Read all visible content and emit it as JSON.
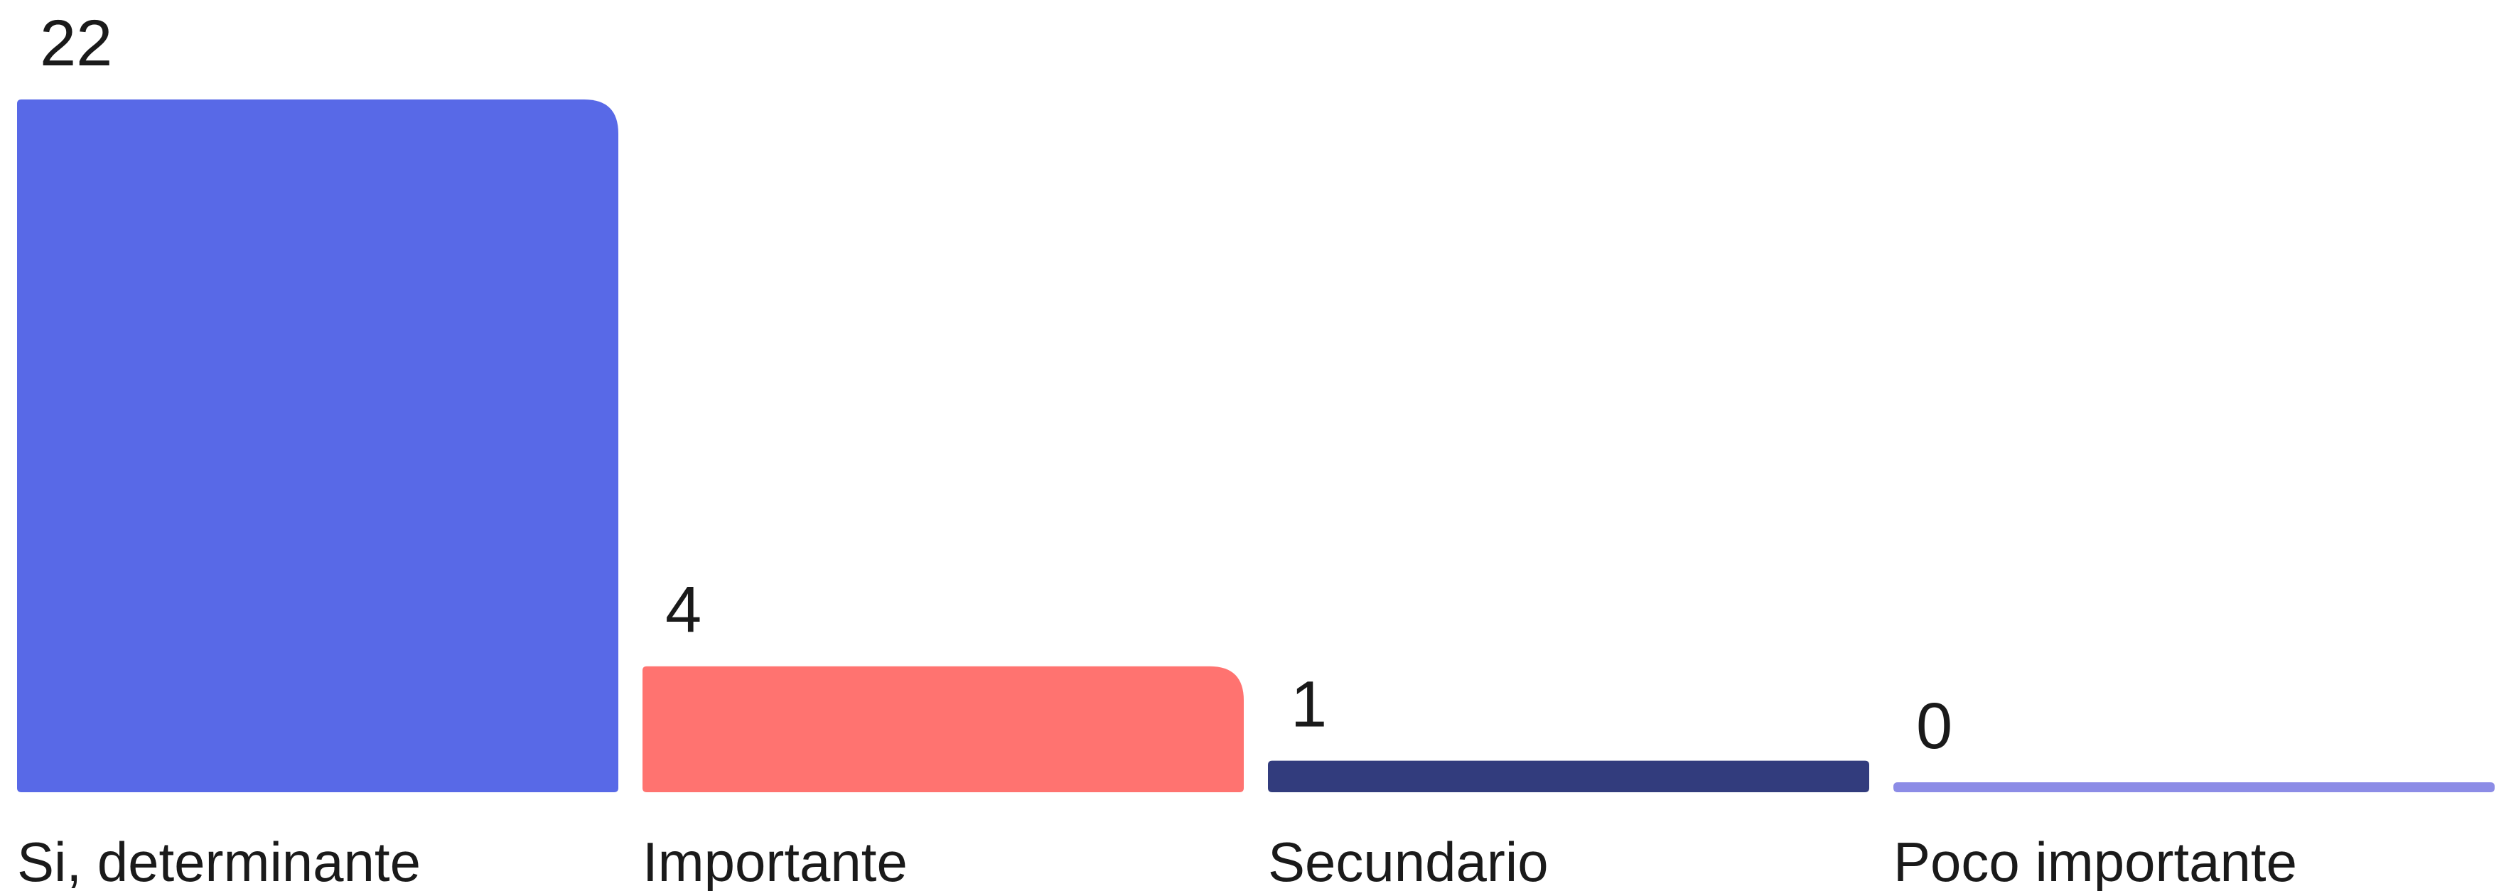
{
  "chart_data": {
    "type": "bar",
    "categories": [
      "Si, determinante",
      "Importante",
      "Secundario",
      "Poco importante"
    ],
    "values": [
      22,
      4,
      1,
      0
    ],
    "colors": [
      "#5869E7",
      "#FF7370",
      "#323C7D",
      "#8C8CE6"
    ],
    "title": "",
    "xlabel": "",
    "ylabel": "",
    "ylim": [
      0,
      22
    ],
    "grid": false,
    "legend": "none"
  }
}
